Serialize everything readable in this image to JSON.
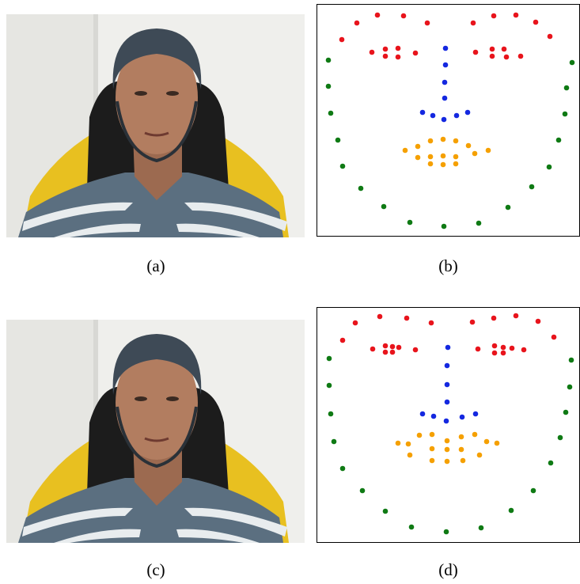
{
  "photos": [
    {
      "caption": "(a)"
    },
    {
      "caption": "(c)"
    }
  ],
  "chart_data": [
    {
      "type": "scatter",
      "caption": "(b)",
      "xlim": [
        0,
        333
      ],
      "ylim": [
        293,
        0
      ],
      "frame": true,
      "series": [
        {
          "color": "#e8141c",
          "x": [
            32,
            51,
            77,
            110,
            140,
            198,
            224,
            252,
            277,
            295,
            70,
            87,
            103,
            87,
            103,
            125,
            201,
            222,
            237,
            222,
            240,
            258
          ],
          "y": [
            45,
            24,
            14,
            15,
            24,
            24,
            15,
            14,
            23,
            41,
            61,
            57,
            56,
            66,
            67,
            62,
            61,
            57,
            57,
            66,
            67,
            66
          ]
        },
        {
          "color": "#1428e0",
          "x": [
            163,
            163,
            162,
            162,
            134,
            147,
            161,
            177,
            191
          ],
          "y": [
            56,
            77,
            99,
            119,
            137,
            141,
            146,
            141,
            137
          ]
        },
        {
          "color": "#f5a000",
          "x": [
            112,
            128,
            144,
            160,
            176,
            192,
            217,
            128,
            144,
            160,
            176,
            200,
            144,
            160,
            176
          ],
          "y": [
            185,
            180,
            173,
            171,
            173,
            179,
            185,
            194,
            193,
            192,
            193,
            189,
            202,
            203,
            202
          ]
        },
        {
          "color": "#0f7a14",
          "x": [
            15,
            15,
            18,
            27,
            33,
            56,
            85,
            118,
            161,
            205,
            242,
            272,
            294,
            306,
            314,
            316,
            323
          ],
          "y": [
            71,
            104,
            138,
            172,
            205,
            233,
            256,
            276,
            281,
            277,
            257,
            231,
            206,
            172,
            139,
            106,
            74
          ]
        }
      ]
    },
    {
      "type": "scatter",
      "caption": "(d)",
      "xlim": [
        0,
        333
      ],
      "ylim": [
        297,
        0
      ],
      "frame": true,
      "series": [
        {
          "color": "#e8141c",
          "x": [
            33,
            49,
            80,
            114,
            145,
            197,
            224,
            252,
            280,
            300,
            71,
            87,
            96,
            104,
            96,
            87,
            125,
            204,
            225,
            236,
            247,
            236,
            225,
            262
          ],
          "y": [
            42,
            20,
            12,
            14,
            20,
            19,
            14,
            11,
            18,
            38,
            53,
            49,
            50,
            51,
            57,
            57,
            54,
            53,
            49,
            51,
            52,
            58,
            58,
            54
          ]
        },
        {
          "color": "#1428e0",
          "x": [
            166,
            165,
            165,
            165,
            134,
            148,
            164,
            184,
            201
          ],
          "y": [
            51,
            74,
            98,
            120,
            135,
            138,
            144,
            139,
            135
          ]
        },
        {
          "color": "#f5a000",
          "x": [
            103,
            116,
            130,
            146,
            165,
            183,
            200,
            215,
            228,
            118,
            146,
            165,
            183,
            206,
            146,
            165,
            185
          ],
          "y": [
            172,
            173,
            162,
            161,
            169,
            164,
            161,
            170,
            172,
            187,
            179,
            180,
            180,
            187,
            194,
            195,
            194
          ]
        },
        {
          "color": "#0f7a14",
          "x": [
            16,
            16,
            18,
            22,
            33,
            58,
            87,
            120,
            164,
            208,
            246,
            274,
            296,
            308,
            315,
            320,
            322
          ],
          "y": [
            65,
            99,
            135,
            170,
            204,
            232,
            258,
            278,
            284,
            279,
            257,
            232,
            197,
            165,
            133,
            101,
            67
          ]
        }
      ]
    }
  ]
}
